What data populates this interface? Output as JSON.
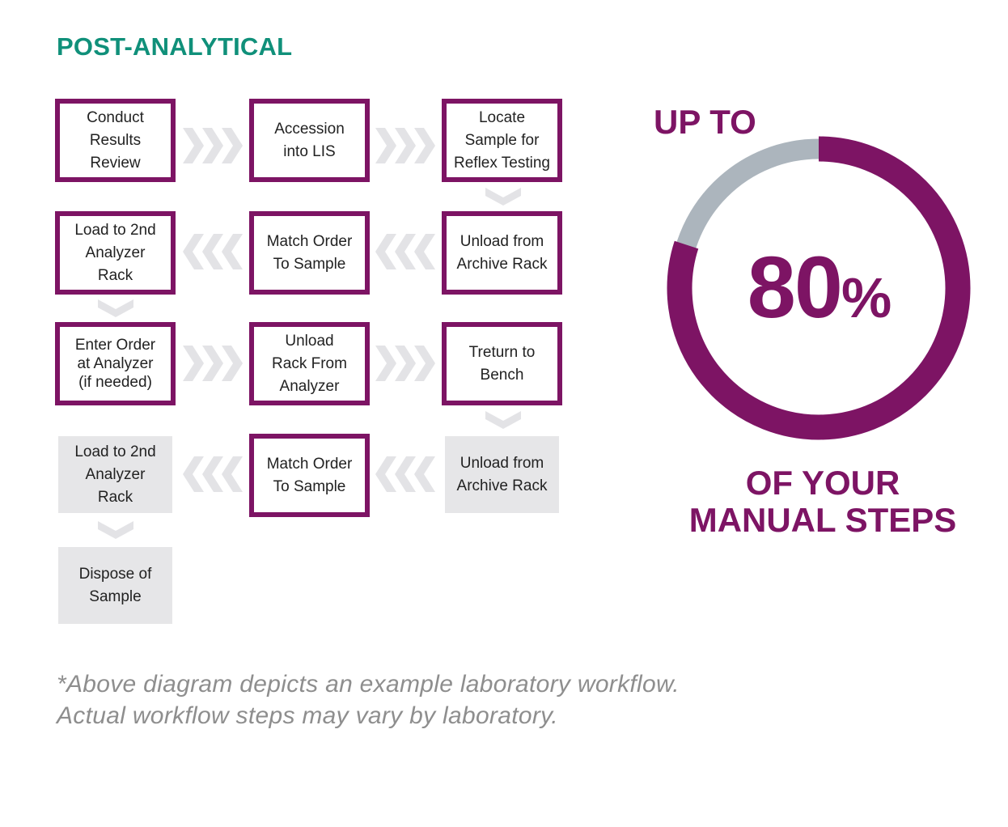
{
  "heading": "POST-ANALYTICAL",
  "colors": {
    "heading": "#10907a",
    "accent": "#7d1464",
    "ring_track": "#acb5bd",
    "inactive_box": "#e6e6e8",
    "arrow": "#e3e3e6",
    "footnote": "#8e8e8e"
  },
  "steps": [
    {
      "label": "Conduct\nResults\nReview"
    },
    {
      "label": "Accession\ninto LIS"
    },
    {
      "label": "Locate\nSample for\nReflex Testing"
    },
    {
      "label": "Unload from\nArchive Rack"
    },
    {
      "label": "Match Order\nTo Sample"
    },
    {
      "label": "Load to 2nd\nAnalyzer\nRack"
    },
    {
      "label": "Enter Order\nat Analyzer\n(if needed)"
    },
    {
      "label": "Unload\nRack From\nAnalyzer"
    },
    {
      "label": "Treturn to\nBench"
    },
    {
      "label": "Unload from\nArchive Rack"
    },
    {
      "label": "Match Order\nTo Sample"
    },
    {
      "label": "Load to 2nd\nAnalyzer\nRack"
    },
    {
      "label": "Dispose of\nSample"
    }
  ],
  "arrow_icons": [
    "chevrons-right-icon",
    "chevrons-right-icon",
    "chevron-down-icon",
    "chevrons-left-icon",
    "chevrons-left-icon",
    "chevron-down-icon",
    "chevrons-right-icon",
    "chevrons-right-icon",
    "chevron-down-icon",
    "chevrons-left-icon",
    "chevrons-left-icon",
    "chevron-down-icon"
  ],
  "stat": {
    "prefix": "UP TO",
    "value": "80",
    "unit": "%",
    "fraction": 0.8,
    "suffix_line1": "OF YOUR",
    "suffix_line2": "MANUAL STEPS"
  },
  "footnote": "*Above diagram depicts an example laboratory workflow.\nActual workflow steps may vary by laboratory."
}
